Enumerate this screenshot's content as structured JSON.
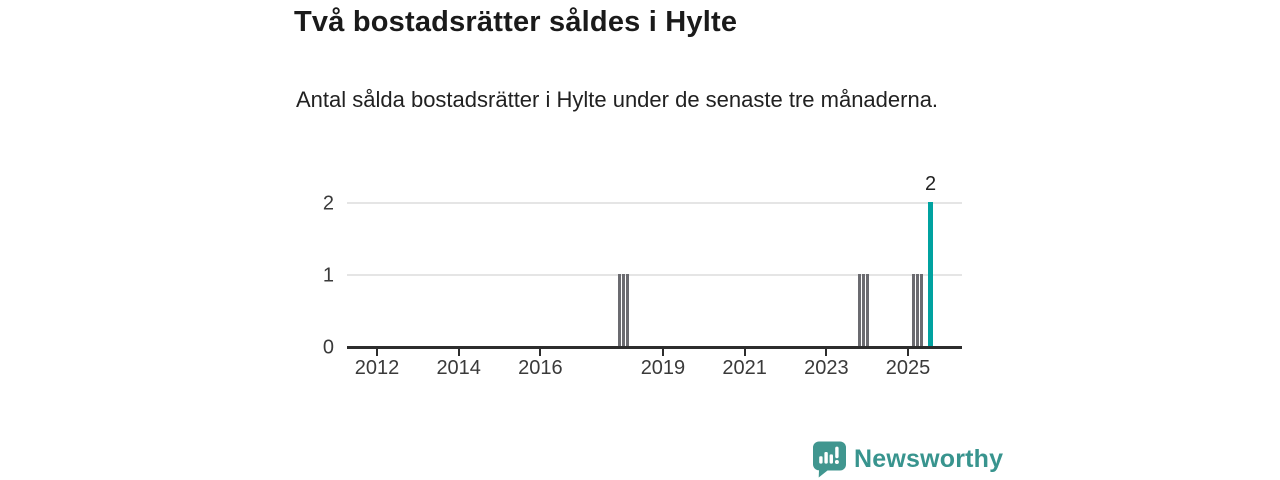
{
  "header": {
    "title": "Två bostadsrätter såldes i Hylte",
    "subtitle": "Antal sålda bostadsrätter i Hylte under de senaste tre månaderna."
  },
  "chart_data": {
    "type": "bar",
    "title": "Två bostadsrätter såldes i Hylte",
    "subtitle": "Antal sålda bostadsrätter i Hylte under de senaste tre månaderna.",
    "xlabel": "",
    "ylabel": "",
    "x_axis": {
      "range_years": [
        2011.3,
        2026.3
      ],
      "ticks": [
        {
          "label": "2012",
          "year": 2012
        },
        {
          "label": "2014",
          "year": 2014
        },
        {
          "label": "2016",
          "year": 2016
        },
        {
          "label": "2019",
          "year": 2019
        },
        {
          "label": "2021",
          "year": 2021
        },
        {
          "label": "2023",
          "year": 2023
        },
        {
          "label": "2025",
          "year": 2025
        }
      ]
    },
    "y_axis": {
      "range": [
        0,
        2
      ],
      "ticks": [
        {
          "label": "0",
          "value": 0
        },
        {
          "label": "1",
          "value": 1
        },
        {
          "label": "2",
          "value": 2
        }
      ],
      "gridlines_at": [
        1,
        2
      ]
    },
    "grid": "horizontal",
    "legend": "none",
    "bars": [
      {
        "month": "2017-12",
        "x": 2017.94,
        "value": 1,
        "highlight": false
      },
      {
        "month": "2018-01",
        "x": 2018.04,
        "value": 1,
        "highlight": false
      },
      {
        "month": "2018-02",
        "x": 2018.14,
        "value": 1,
        "highlight": false
      },
      {
        "month": "2023-11",
        "x": 2023.81,
        "value": 1,
        "highlight": false
      },
      {
        "month": "2023-12",
        "x": 2023.91,
        "value": 1,
        "highlight": false
      },
      {
        "month": "2024-01",
        "x": 2024.01,
        "value": 1,
        "highlight": false
      },
      {
        "month": "2025-02",
        "x": 2025.14,
        "value": 1,
        "highlight": false
      },
      {
        "month": "2025-03",
        "x": 2025.23,
        "value": 1,
        "highlight": false
      },
      {
        "month": "2025-04",
        "x": 2025.33,
        "value": 1,
        "highlight": false
      },
      {
        "month": "2025-07",
        "x": 2025.55,
        "value": 2,
        "highlight": true
      }
    ],
    "annotation": {
      "text": "2",
      "x": 2025.55,
      "value": 2
    },
    "colors": {
      "bar_default": "#6b6b70",
      "bar_highlight": "#00a2a0",
      "gridline": "#e5e5e5",
      "axis": "#2d2d2d",
      "tick_label": "#3a3a3a"
    }
  },
  "branding": {
    "logo_text": "Newsworthy",
    "logo_icon": "bar-chart-speech-bubble-icon",
    "text_color": "#38948e",
    "icon_color": "#40968f"
  }
}
